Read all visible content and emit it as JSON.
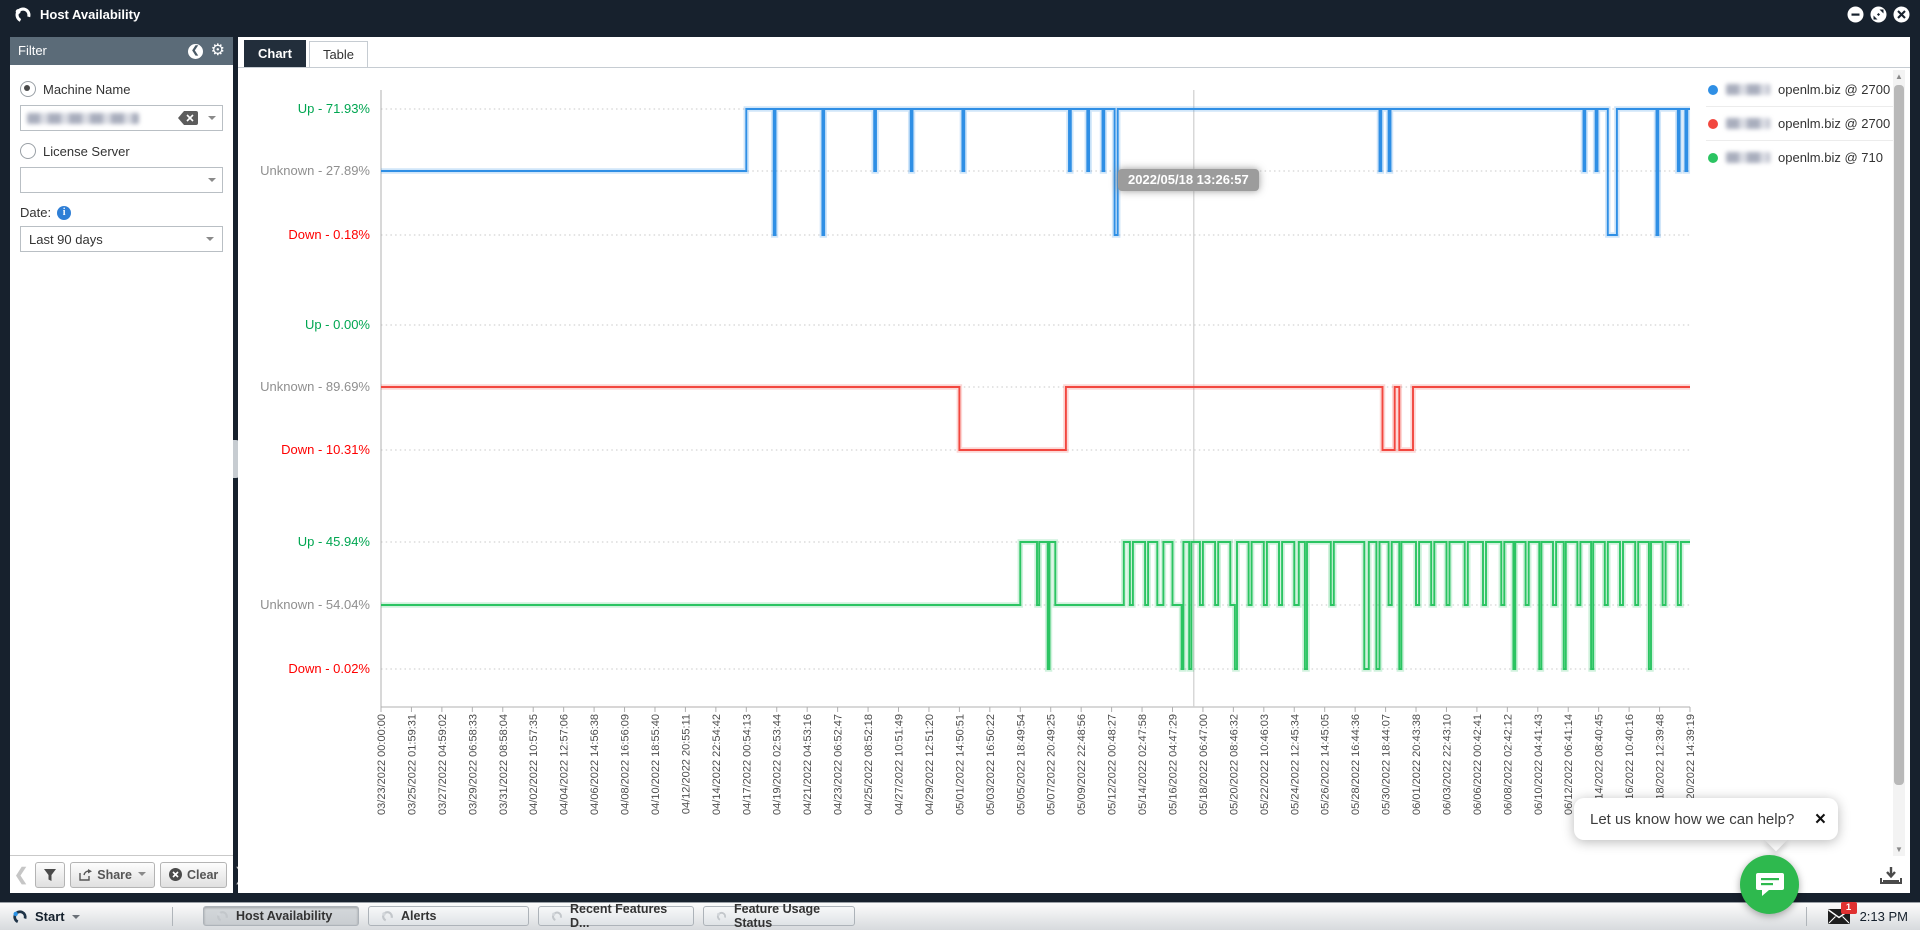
{
  "window": {
    "title": "Host Availability",
    "controls": {
      "minimize": "minimize",
      "maximize": "maximize",
      "close": "close"
    }
  },
  "filter": {
    "title": "Filter",
    "machine_name_label": "Machine Name",
    "license_server_label": "License Server",
    "date_label": "Date:",
    "date_value": "Last 90 days",
    "share_label": "Share",
    "clear_label": "Clear"
  },
  "tabs": [
    {
      "label": "Chart",
      "active": true
    },
    {
      "label": "Table",
      "active": false
    }
  ],
  "chart_data": {
    "type": "line",
    "subtype": "step-availability-timeline",
    "legend_position": "right",
    "grid": "horizontal-dotted",
    "status_colors": {
      "up": "#00a651",
      "unknown": "#8f8f8f",
      "down": "#ff0000"
    },
    "x_axis": {
      "tick_labels": [
        "03/23/2022 00:00:00",
        "03/25/2022 01:59:31",
        "03/27/2022 04:59:02",
        "03/29/2022 06:58:33",
        "03/31/2022 08:58:04",
        "04/02/2022 10:57:35",
        "04/04/2022 12:57:06",
        "04/06/2022 14:56:38",
        "04/08/2022 16:56:09",
        "04/10/2022 18:55:40",
        "04/12/2022 20:55:11",
        "04/14/2022 22:54:42",
        "04/17/2022 00:54:13",
        "04/19/2022 02:53:44",
        "04/21/2022 04:53:16",
        "04/23/2022 06:52:47",
        "04/25/2022 08:52:18",
        "04/27/2022 10:51:49",
        "04/29/2022 12:51:20",
        "05/01/2022 14:50:51",
        "05/03/2022 16:50:22",
        "05/05/2022 18:49:54",
        "05/07/2022 20:49:25",
        "05/09/2022 22:48:56",
        "05/12/2022 00:48:27",
        "05/14/2022 02:47:58",
        "05/16/2022 04:47:29",
        "05/18/2022 06:47:00",
        "05/20/2022 08:46:32",
        "05/22/2022 10:46:03",
        "05/24/2022 12:45:34",
        "05/26/2022 14:45:05",
        "05/28/2022 16:44:36",
        "05/30/2022 18:44:07",
        "06/01/2022 20:43:38",
        "06/03/2022 22:43:10",
        "06/06/2022 00:42:41",
        "06/08/2022 02:42:12",
        "06/10/2022 04:41:43",
        "06/12/2022 06:41:14",
        "06/14/2022 08:40:45",
        "06/16/2022 10:40:16",
        "06/18/2022 12:39:48",
        "06/20/2022 14:39:19"
      ]
    },
    "crosshair": {
      "t": 26.7,
      "tooltip": "2022/05/18 13:26:57"
    },
    "groups": [
      {
        "name": "server-1",
        "color": "#2f8fe5",
        "legend_label": "openlm.biz @ 2700",
        "legend_prefix_redacted": true,
        "levels": {
          "up": "Up - 71.93%",
          "unknown": "Unknown - 27.89%",
          "down": "Down - 0.18%"
        },
        "segments": [
          [
            0,
            12.0,
            "unknown"
          ],
          [
            12.0,
            12.9,
            "up"
          ],
          [
            12.9,
            12.96,
            "down"
          ],
          [
            12.96,
            14.5,
            "up"
          ],
          [
            14.5,
            14.56,
            "down"
          ],
          [
            14.56,
            16.2,
            "up"
          ],
          [
            16.2,
            16.26,
            "unknown"
          ],
          [
            16.26,
            17.4,
            "up"
          ],
          [
            17.4,
            17.46,
            "unknown"
          ],
          [
            17.46,
            19.1,
            "up"
          ],
          [
            19.1,
            19.16,
            "unknown"
          ],
          [
            19.16,
            22.6,
            "up"
          ],
          [
            22.6,
            22.66,
            "unknown"
          ],
          [
            22.66,
            23.2,
            "up"
          ],
          [
            23.2,
            23.26,
            "unknown"
          ],
          [
            23.26,
            23.7,
            "up"
          ],
          [
            23.7,
            23.76,
            "unknown"
          ],
          [
            23.76,
            24.1,
            "up"
          ],
          [
            24.1,
            24.2,
            "down"
          ],
          [
            24.2,
            32.8,
            "up"
          ],
          [
            32.8,
            32.86,
            "unknown"
          ],
          [
            32.86,
            33.1,
            "up"
          ],
          [
            33.1,
            33.16,
            "unknown"
          ],
          [
            33.16,
            39.5,
            "up"
          ],
          [
            39.5,
            39.56,
            "unknown"
          ],
          [
            39.56,
            39.9,
            "up"
          ],
          [
            39.9,
            39.96,
            "unknown"
          ],
          [
            39.96,
            40.3,
            "up"
          ],
          [
            40.3,
            40.6,
            "down"
          ],
          [
            40.6,
            41.9,
            "up"
          ],
          [
            41.9,
            41.96,
            "down"
          ],
          [
            41.96,
            42.6,
            "up"
          ],
          [
            42.6,
            42.66,
            "unknown"
          ],
          [
            42.66,
            42.85,
            "up"
          ],
          [
            42.85,
            42.91,
            "unknown"
          ],
          [
            42.91,
            43,
            "up"
          ]
        ]
      },
      {
        "name": "server-2",
        "color": "#f2473f",
        "legend_label": "openlm.biz @ 2700",
        "legend_prefix_redacted": true,
        "levels": {
          "up": "Up - 0.00%",
          "unknown": "Unknown - 89.69%",
          "down": "Down - 10.31%"
        },
        "segments": [
          [
            0,
            19.0,
            "unknown"
          ],
          [
            19.0,
            22.5,
            "down"
          ],
          [
            22.5,
            32.9,
            "unknown"
          ],
          [
            32.9,
            33.3,
            "down"
          ],
          [
            33.3,
            33.45,
            "unknown"
          ],
          [
            33.45,
            33.9,
            "down"
          ],
          [
            33.9,
            43,
            "unknown"
          ]
        ]
      },
      {
        "name": "server-3",
        "color": "#2bc462",
        "legend_label": "openlm.biz @ 710",
        "legend_prefix_redacted": true,
        "levels": {
          "up": "Up - 45.94%",
          "unknown": "Unknown - 54.04%",
          "down": "Down - 0.02%"
        },
        "segments": [
          [
            0,
            21.0,
            "unknown"
          ],
          [
            21.0,
            21.55,
            "up"
          ],
          [
            21.55,
            21.62,
            "unknown"
          ],
          [
            21.62,
            21.9,
            "up"
          ],
          [
            21.9,
            21.96,
            "down"
          ],
          [
            21.96,
            22.15,
            "up"
          ],
          [
            22.15,
            24.4,
            "unknown"
          ],
          [
            24.4,
            24.6,
            "up"
          ],
          [
            24.6,
            24.7,
            "unknown"
          ],
          [
            24.7,
            25.1,
            "up"
          ],
          [
            25.1,
            25.2,
            "unknown"
          ],
          [
            25.2,
            25.5,
            "up"
          ],
          [
            25.5,
            25.7,
            "unknown"
          ],
          [
            25.7,
            26.0,
            "up"
          ],
          [
            26.0,
            26.3,
            "unknown"
          ],
          [
            26.3,
            26.36,
            "down"
          ],
          [
            26.36,
            26.55,
            "up"
          ],
          [
            26.55,
            26.62,
            "down"
          ],
          [
            26.62,
            26.9,
            "up"
          ],
          [
            26.9,
            27.0,
            "unknown"
          ],
          [
            27.0,
            27.4,
            "up"
          ],
          [
            27.4,
            27.5,
            "unknown"
          ],
          [
            27.5,
            27.9,
            "up"
          ],
          [
            27.9,
            28.05,
            "unknown"
          ],
          [
            28.05,
            28.12,
            "down"
          ],
          [
            28.12,
            28.5,
            "up"
          ],
          [
            28.5,
            28.6,
            "unknown"
          ],
          [
            28.6,
            29.0,
            "up"
          ],
          [
            29.0,
            29.1,
            "unknown"
          ],
          [
            29.1,
            29.5,
            "up"
          ],
          [
            29.5,
            29.6,
            "unknown"
          ],
          [
            29.6,
            30.0,
            "up"
          ],
          [
            30.0,
            30.15,
            "unknown"
          ],
          [
            30.15,
            30.35,
            "up"
          ],
          [
            30.35,
            30.42,
            "down"
          ],
          [
            30.42,
            31.2,
            "up"
          ],
          [
            31.2,
            31.3,
            "unknown"
          ],
          [
            31.3,
            32.3,
            "up"
          ],
          [
            32.3,
            32.45,
            "down"
          ],
          [
            32.45,
            32.7,
            "up"
          ],
          [
            32.7,
            32.8,
            "down"
          ],
          [
            32.8,
            33.1,
            "up"
          ],
          [
            33.1,
            33.2,
            "unknown"
          ],
          [
            33.2,
            33.45,
            "up"
          ],
          [
            33.45,
            33.52,
            "down"
          ],
          [
            33.52,
            34.0,
            "up"
          ],
          [
            34.0,
            34.1,
            "unknown"
          ],
          [
            34.1,
            34.5,
            "up"
          ],
          [
            34.5,
            34.6,
            "unknown"
          ],
          [
            34.6,
            35.0,
            "up"
          ],
          [
            35.0,
            35.1,
            "unknown"
          ],
          [
            35.1,
            35.6,
            "up"
          ],
          [
            35.6,
            35.7,
            "unknown"
          ],
          [
            35.7,
            36.2,
            "up"
          ],
          [
            36.2,
            36.3,
            "unknown"
          ],
          [
            36.3,
            36.8,
            "up"
          ],
          [
            36.8,
            36.9,
            "unknown"
          ],
          [
            36.9,
            37.2,
            "up"
          ],
          [
            37.2,
            37.26,
            "down"
          ],
          [
            37.26,
            37.6,
            "up"
          ],
          [
            37.6,
            37.7,
            "unknown"
          ],
          [
            37.7,
            38.05,
            "up"
          ],
          [
            38.05,
            38.12,
            "down"
          ],
          [
            38.12,
            38.5,
            "up"
          ],
          [
            38.5,
            38.6,
            "unknown"
          ],
          [
            38.6,
            38.85,
            "up"
          ],
          [
            38.85,
            38.92,
            "down"
          ],
          [
            38.92,
            39.3,
            "up"
          ],
          [
            39.3,
            39.4,
            "unknown"
          ],
          [
            39.4,
            39.75,
            "up"
          ],
          [
            39.75,
            39.82,
            "down"
          ],
          [
            39.82,
            40.2,
            "up"
          ],
          [
            40.2,
            40.3,
            "unknown"
          ],
          [
            40.3,
            40.7,
            "up"
          ],
          [
            40.7,
            40.8,
            "unknown"
          ],
          [
            40.8,
            41.2,
            "up"
          ],
          [
            41.2,
            41.3,
            "unknown"
          ],
          [
            41.3,
            41.65,
            "up"
          ],
          [
            41.65,
            41.72,
            "down"
          ],
          [
            41.72,
            42.1,
            "up"
          ],
          [
            42.1,
            42.2,
            "unknown"
          ],
          [
            42.2,
            42.6,
            "up"
          ],
          [
            42.6,
            42.7,
            "unknown"
          ],
          [
            42.7,
            43,
            "up"
          ]
        ]
      }
    ]
  },
  "chat": {
    "message": "Let us know how we can help?",
    "close_label": "×"
  },
  "taskbar": {
    "start_label": "Start",
    "items": [
      {
        "label": "Host Availability",
        "active": true
      },
      {
        "label": "Alerts",
        "active": false
      },
      {
        "label": "Recent Features D...",
        "active": false
      },
      {
        "label": "Feature Usage Status",
        "active": false
      }
    ],
    "mail_badge": "1",
    "time": "2:13 PM"
  }
}
